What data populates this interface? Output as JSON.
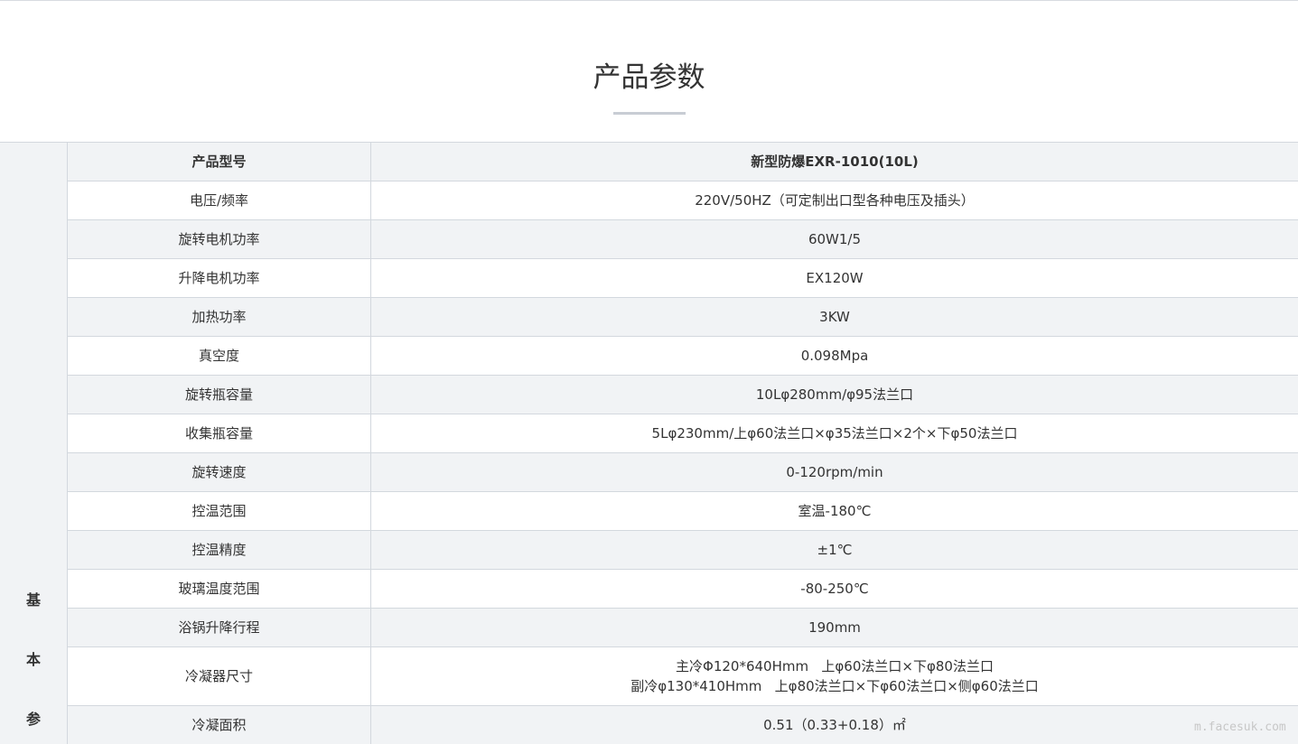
{
  "header": {
    "title": "产品参数"
  },
  "table": {
    "side_label": [
      "基",
      "本",
      "参"
    ],
    "head": [
      "产品型号",
      "新型防爆EXR-1010(10L)"
    ],
    "rows": [
      [
        "电压/频率",
        "220V/50HZ（可定制出口型各种电压及插头）"
      ],
      [
        "旋转电机功率",
        "60W1/5"
      ],
      [
        "升降电机功率",
        "EX120W"
      ],
      [
        "加热功率",
        "3KW"
      ],
      [
        "真空度",
        "0.098Mpa"
      ],
      [
        "旋转瓶容量",
        "10Lφ280mm/φ95法兰口"
      ],
      [
        "收集瓶容量",
        "5Lφ230mm/上φ60法兰口×φ35法兰口×2个×下φ50法兰口"
      ],
      [
        "旋转速度",
        "0-120rpm/min"
      ],
      [
        "控温范围",
        "室温-180℃"
      ],
      [
        "控温精度",
        "±1℃"
      ],
      [
        "玻璃温度范围",
        "-80-250℃"
      ],
      [
        "浴锅升降行程",
        "190mm"
      ],
      [
        "冷凝器尺寸",
        [
          "主冷Φ120*640Hmm   上φ60法兰口×下φ80法兰口",
          "副冷φ130*410Hmm   上φ80法兰口×下φ60法兰口×侧φ60法兰口"
        ]
      ],
      [
        "冷凝面积",
        "0.51（0.33+0.18）㎡"
      ]
    ]
  },
  "watermark": "m.facesuk.com"
}
